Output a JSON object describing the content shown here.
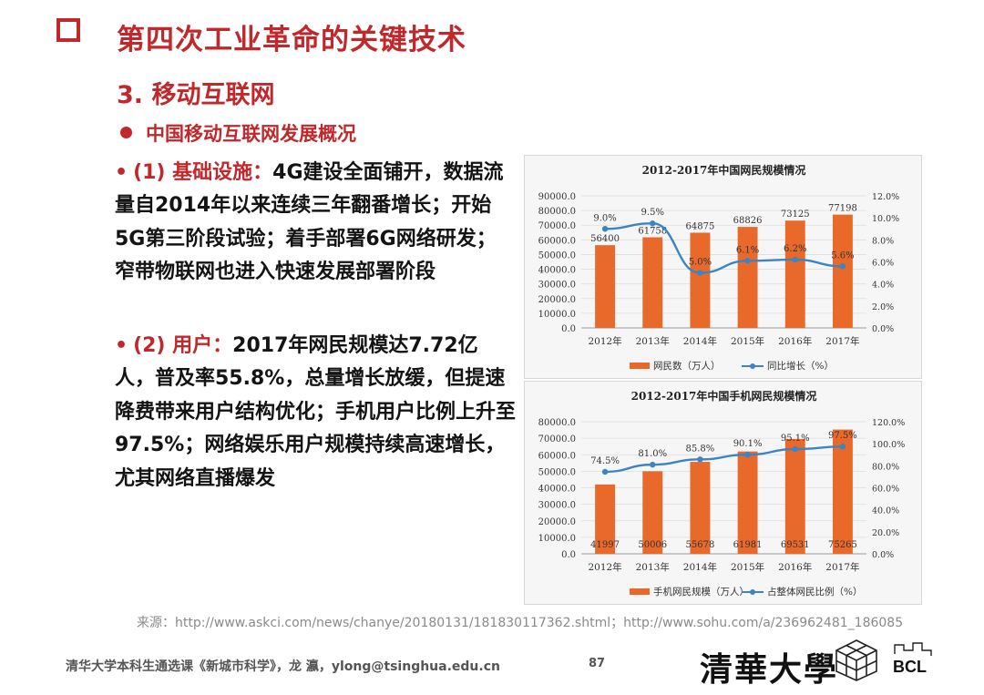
{
  "header": {
    "title": "第四次工业革命的关键技术",
    "section": "3. 移动互联网",
    "subheading": "中国移动互联网发展概况"
  },
  "paragraphs": [
    {
      "bullet": "•",
      "highlight": "(1) 基础设施：",
      "text": "4G建设全面铺开，数据流量自2014年以来连续三年翻番增长；开始5G第三阶段试验；着手部署6G网络研发；窄带物联网也进入快速发展部署阶段"
    },
    {
      "bullet": "•",
      "highlight": "(2) 用户：",
      "text": "2017年网民规模达7.72亿人，普及率55.8%，总量增长放缓，但提速降费带来用户结构优化；手机用户比例上升至97.5%；网络娱乐用户规模持续高速增长，尤其网络直播爆发"
    }
  ],
  "chart_data": [
    {
      "type": "bar",
      "title": "2012-2017年中国网民规模情况",
      "categories": [
        "2012年",
        "2013年",
        "2014年",
        "2015年",
        "2016年",
        "2017年"
      ],
      "series": [
        {
          "name": "网民数（万人）",
          "type": "bar",
          "axis": "left",
          "values": [
            56400,
            61758,
            64875,
            68826,
            73125,
            77198
          ],
          "labels": [
            "56400",
            "61758",
            "64875",
            "68826",
            "73125",
            "77198"
          ]
        },
        {
          "name": "同比增长（%）",
          "type": "line",
          "axis": "right",
          "values": [
            9.0,
            9.5,
            5.0,
            6.1,
            6.2,
            5.6
          ],
          "labels": [
            "9.0%",
            "9.5%",
            "5.0%",
            "6.1%",
            "6.2%",
            "5.6%"
          ]
        }
      ],
      "left_ticks": [
        "0.0",
        "10000.0",
        "20000.0",
        "30000.0",
        "40000.0",
        "50000.0",
        "60000.0",
        "70000.0",
        "80000.0",
        "90000.0"
      ],
      "right_ticks": [
        "0.0%",
        "2.0%",
        "4.0%",
        "6.0%",
        "8.0%",
        "10.0%",
        "12.0%"
      ],
      "ylim_left": [
        0,
        90000
      ],
      "ylim_right": [
        0,
        12
      ],
      "bar_label_position": "top",
      "legend_position": "bottom",
      "bar_color": "#e8692a",
      "line_color": "#3c84c4"
    },
    {
      "type": "bar",
      "title": "2012-2017年中国手机网民规模情况",
      "categories": [
        "2012年",
        "2013年",
        "2014年",
        "2015年",
        "2016年",
        "2017年"
      ],
      "series": [
        {
          "name": "手机网民规模（万人）",
          "type": "bar",
          "axis": "left",
          "values": [
            41997,
            50006,
            55678,
            61981,
            69531,
            75265
          ],
          "labels": [
            "41997",
            "50006",
            "55678",
            "61981",
            "69531",
            "75265"
          ]
        },
        {
          "name": "占整体网民比例（%）",
          "type": "line",
          "axis": "right",
          "values": [
            74.5,
            81.0,
            85.8,
            90.1,
            95.1,
            97.5
          ],
          "labels": [
            "74.5%",
            "81.0%",
            "85.8%",
            "90.1%",
            "95.1%",
            "97.5%"
          ]
        }
      ],
      "left_ticks": [
        "0.0",
        "10000.0",
        "20000.0",
        "30000.0",
        "40000.0",
        "50000.0",
        "60000.0",
        "70000.0",
        "80000.0"
      ],
      "right_ticks": [
        "0.0%",
        "20.0%",
        "40.0%",
        "60.0%",
        "80.0%",
        "100.0%",
        "120.0%"
      ],
      "ylim_left": [
        0,
        80000
      ],
      "ylim_right": [
        0,
        120
      ],
      "bar_label_position": "base",
      "legend_position": "bottom",
      "bar_color": "#e8692a",
      "line_color": "#3c84c4"
    }
  ],
  "source": "来源：http://www.askci.com/news/chanye/20180131/181830117362.shtml；http://www.sohu.com/a/236962481_186085",
  "footer": {
    "course": "清华大学本科生通选课《新城市科学》，龙 瀛，ylong@tsinghua.edu.cn",
    "page": "87"
  },
  "logos": {
    "university": "清華大學",
    "lab": "BCL",
    "lab_icon": "cube-logo-icon"
  }
}
